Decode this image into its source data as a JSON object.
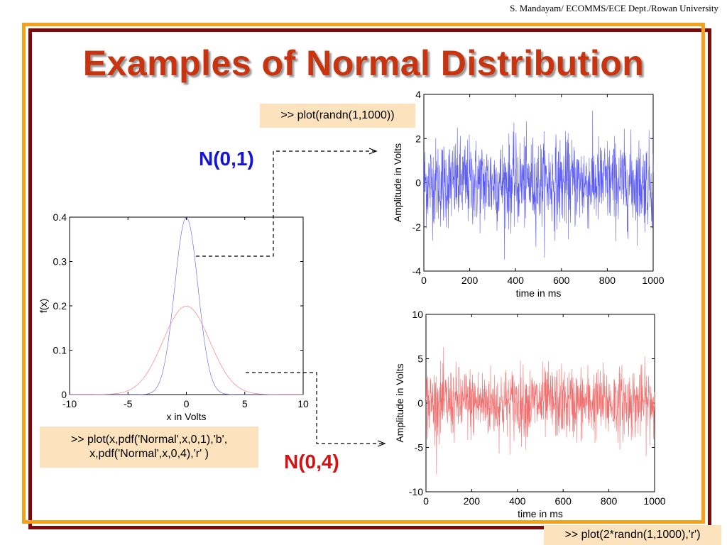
{
  "slide": {
    "credit": "S. Mandayam/ ECOMMS/ECE Dept./Rowan University",
    "title": "Examples of Normal Distribution",
    "code_top": ">> plot(randn(1,1000))",
    "code_left_line1": ">> plot(x,pdf('Normal',x,0,1),'b',",
    "code_left_line2": "x,pdf('Normal',x,0,4),'r' )",
    "code_bottom": ">> plot(2*randn(1,1000),'r')",
    "label_n01": "N(0,1)",
    "label_n04": "N(0,4)",
    "colors": {
      "title": "#c8340f",
      "frame_outer": "#7b0a0a",
      "frame_inner": "#f2a21c",
      "code_bg": "#fde3bd",
      "blue": "#1414d4",
      "red": "#d41414"
    }
  },
  "chart_data": [
    {
      "type": "line",
      "xlabel": "x in Volts",
      "ylabel": "f(x)",
      "xlim": [
        -10,
        10
      ],
      "ylim": [
        0,
        0.4
      ],
      "xticks": [
        "-10",
        "-5",
        "0",
        "5",
        "10"
      ],
      "yticks": [
        "0",
        "0.1",
        "0.2",
        "0.3",
        "0.4"
      ],
      "series": [
        {
          "color": "#5b5bf5",
          "mean": 0,
          "sd": 1,
          "x": [
            -10,
            -4,
            -3,
            -2,
            -1,
            0,
            1,
            2,
            3,
            4,
            10
          ],
          "y": [
            0,
            0.0001,
            0.0044,
            0.054,
            0.242,
            0.399,
            0.242,
            0.054,
            0.0044,
            0.0001,
            0
          ]
        },
        {
          "color": "#f07070",
          "mean": 0,
          "sd": 2,
          "x": [
            -10,
            -6,
            -4,
            -2,
            0,
            2,
            4,
            6,
            10
          ],
          "y": [
            0.0,
            0.0022,
            0.027,
            0.121,
            0.199,
            0.121,
            0.027,
            0.0022,
            0.0
          ]
        }
      ]
    },
    {
      "type": "line",
      "xlabel": "time in ms",
      "ylabel": "Amplitude in Volts",
      "xlim": [
        0,
        1000
      ],
      "ylim": [
        -4,
        4
      ],
      "xticks": [
        "0",
        "200",
        "400",
        "600",
        "800",
        "1000"
      ],
      "yticks": [
        "-4",
        "-2",
        "0",
        "2",
        "4"
      ],
      "series": [
        {
          "color": "#5b5bf5",
          "n": 1000,
          "sd": 1
        }
      ]
    },
    {
      "type": "line",
      "xlabel": "time in ms",
      "ylabel": "Amplitude in Volts",
      "xlim": [
        0,
        1000
      ],
      "ylim": [
        -10,
        10
      ],
      "xticks": [
        "0",
        "200",
        "400",
        "600",
        "800",
        "1000"
      ],
      "yticks": [
        "-10",
        "-5",
        "0",
        "5",
        "10"
      ],
      "series": [
        {
          "color": "#f07070",
          "n": 1000,
          "sd": 2
        }
      ]
    }
  ]
}
